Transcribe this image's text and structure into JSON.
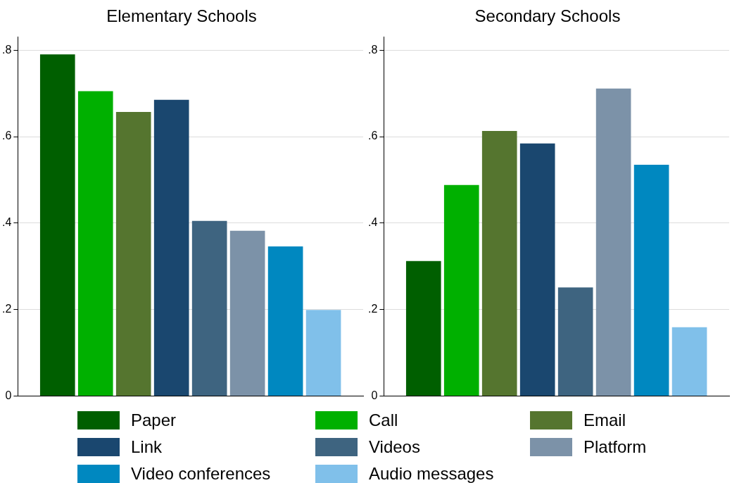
{
  "chart_data": [
    {
      "type": "bar",
      "title": "Elementary Schools",
      "categories": [
        null
      ],
      "ylim": [
        0,
        0.83
      ],
      "yticks": [
        0,
        {
          "value": 0.2,
          "label": ".2"
        },
        {
          "value": 0.4,
          "label": ".4"
        },
        {
          "value": 0.6,
          "label": ".6"
        },
        {
          "value": 0.8,
          "label": ".8"
        }
      ],
      "grid": "y",
      "legend": "bottom",
      "tick_labels": "y",
      "series": [
        {
          "name": "Paper",
          "color": "#005f00",
          "values": [
            0.79
          ]
        },
        {
          "name": "Call",
          "color": "#00b000",
          "values": [
            0.705
          ]
        },
        {
          "name": "Email",
          "color": "#55752f",
          "values": [
            0.657
          ]
        },
        {
          "name": "Link",
          "color": "#1a476f",
          "values": [
            0.685
          ]
        },
        {
          "name": "Videos",
          "color": "#3e6480",
          "values": [
            0.405
          ]
        },
        {
          "name": "Platform",
          "color": "#7c92a8",
          "values": [
            0.382
          ]
        },
        {
          "name": "Video conferences",
          "color": "#0088c0",
          "values": [
            0.346
          ]
        },
        {
          "name": "Audio messages",
          "color": "#80c0ea",
          "values": [
            0.199
          ]
        }
      ]
    },
    {
      "type": "bar",
      "title": "Secondary Schools",
      "categories": [
        null
      ],
      "ylim": [
        0,
        0.83
      ],
      "yticks": [
        0,
        {
          "value": 0.2,
          "label": ".2"
        },
        {
          "value": 0.4,
          "label": ".4"
        },
        {
          "value": 0.6,
          "label": ".6"
        },
        {
          "value": 0.8,
          "label": ".8"
        }
      ],
      "grid": "y",
      "legend": "bottom",
      "tick_labels": "y",
      "series": [
        {
          "name": "Paper",
          "color": "#005f00",
          "values": [
            0.312
          ]
        },
        {
          "name": "Call",
          "color": "#00b000",
          "values": [
            0.488
          ]
        },
        {
          "name": "Email",
          "color": "#55752f",
          "values": [
            0.613
          ]
        },
        {
          "name": "Link",
          "color": "#1a476f",
          "values": [
            0.584
          ]
        },
        {
          "name": "Videos",
          "color": "#3e6480",
          "values": [
            0.251
          ]
        },
        {
          "name": "Platform",
          "color": "#7c92a8",
          "values": [
            0.711
          ]
        },
        {
          "name": "Video conferences",
          "color": "#0088c0",
          "values": [
            0.535
          ]
        },
        {
          "name": "Audio messages",
          "color": "#80c0ea",
          "values": [
            0.159
          ]
        }
      ]
    }
  ]
}
